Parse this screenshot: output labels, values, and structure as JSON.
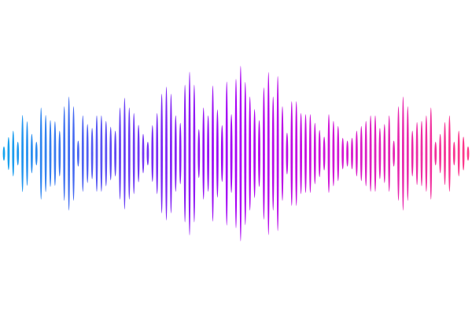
{
  "chart_data": {
    "type": "bar",
    "bar_shape": "tapered-ellipse",
    "axis_visible": false,
    "amplitudes": [
      18,
      42,
      58,
      30,
      98,
      82,
      50,
      30,
      117,
      98,
      85,
      82,
      58,
      120,
      145,
      120,
      33,
      97,
      75,
      65,
      97,
      97,
      83,
      68,
      58,
      117,
      142,
      117,
      103,
      73,
      50,
      30,
      72,
      103,
      152,
      170,
      152,
      97,
      78,
      175,
      208,
      175,
      62,
      117,
      97,
      173,
      112,
      72,
      183,
      100,
      190,
      223,
      182,
      145,
      113,
      85,
      168,
      207,
      145,
      197,
      120,
      53,
      133,
      133,
      103,
      100,
      100,
      78,
      60,
      43,
      100,
      83,
      70,
      40,
      33,
      40,
      58,
      70,
      83,
      97,
      97,
      65,
      75,
      97,
      33,
      120,
      145,
      120,
      58,
      80,
      83,
      97,
      117,
      30,
      50,
      80,
      97,
      30,
      58,
      43,
      18
    ],
    "colors": {
      "gradient_stops": [
        "#12a8ee",
        "#6a3cf5",
        "#a800f5",
        "#d012d8",
        "#ff3a86"
      ]
    },
    "background": "#ffffff"
  }
}
